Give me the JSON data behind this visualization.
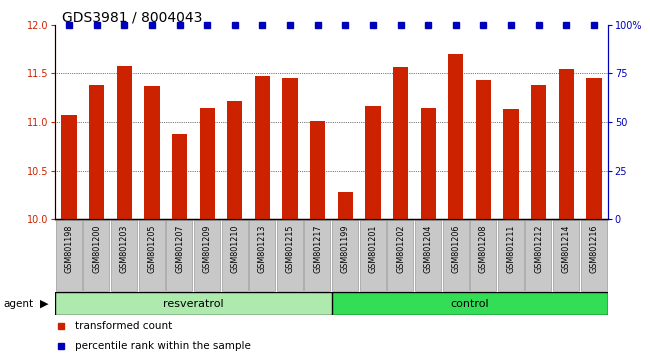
{
  "title": "GDS3981 / 8004043",
  "samples": [
    "GSM801198",
    "GSM801200",
    "GSM801203",
    "GSM801205",
    "GSM801207",
    "GSM801209",
    "GSM801210",
    "GSM801213",
    "GSM801215",
    "GSM801217",
    "GSM801199",
    "GSM801201",
    "GSM801202",
    "GSM801204",
    "GSM801206",
    "GSM801208",
    "GSM801211",
    "GSM801212",
    "GSM801214",
    "GSM801216"
  ],
  "values": [
    11.07,
    11.38,
    11.58,
    11.37,
    10.88,
    11.15,
    11.22,
    11.47,
    11.45,
    11.01,
    10.28,
    11.17,
    11.57,
    11.15,
    11.7,
    11.43,
    11.13,
    11.38,
    11.55,
    11.45
  ],
  "group_labels": [
    "resveratrol",
    "control"
  ],
  "group_sizes": [
    10,
    10
  ],
  "resveratrol_color": "#AEEAAE",
  "control_color": "#33DD55",
  "bar_color": "#CC2200",
  "percentile_color": "#0000BB",
  "ylim_left": [
    10,
    12
  ],
  "ylim_right": [
    0,
    100
  ],
  "yticks_left": [
    10,
    10.5,
    11,
    11.5,
    12
  ],
  "yticks_right": [
    0,
    25,
    50,
    75,
    100
  ],
  "ytick_labels_right": [
    "0",
    "25",
    "50",
    "75",
    "100%"
  ],
  "bar_width": 0.55,
  "agent_label": "agent",
  "legend_items": [
    {
      "label": "transformed count",
      "color": "#CC2200"
    },
    {
      "label": "percentile rank within the sample",
      "color": "#0000BB"
    }
  ],
  "title_fontsize": 10,
  "tick_fontsize": 7,
  "axis_left_color": "#CC2200",
  "axis_right_color": "#0000BB",
  "gray_box_color": "#C8C8C8",
  "gray_box_edge": "#999999"
}
